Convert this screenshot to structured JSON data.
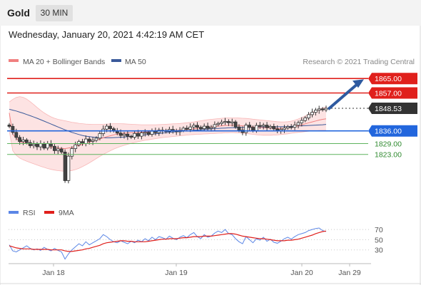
{
  "header": {
    "instrument": "Gold",
    "interval": "30 MIN",
    "timestamp": "Wednesday, January 20, 2021 4:42:19 AM CET"
  },
  "colors": {
    "up_candle": "#ffffff",
    "down_candle": "#444444",
    "bollinger_fill": "#fde3e3",
    "ma20": "#f08080",
    "ma50": "#3a5a9a",
    "resistance": "#e0201c",
    "support": "#2266dd",
    "target_line": "#5fb45f",
    "arrow": "#2e5aa0",
    "rsi": "#5b86e6",
    "rsi_ma": "#e0201c"
  },
  "chart_data": [
    {
      "type": "candlestick",
      "title": "Gold",
      "legend": [
        {
          "name": "MA 20 + Bollinger Bands",
          "color": "#f08080"
        },
        {
          "name": "MA 50",
          "color": "#3a5a9a"
        }
      ],
      "credit": "Research © 2021 Trading Central",
      "y_range": [
        1800,
        1871
      ],
      "x_ticks": [
        "Jan 18",
        "Jan 19",
        "Jan 20",
        "Jan 29"
      ],
      "series": [
        {
          "name": "price_close",
          "values": [
            1838.5,
            1835.2,
            1832.4,
            1830.1,
            1831.0,
            1829.5,
            1827.8,
            1828.6,
            1827.2,
            1829.0,
            1826.5,
            1828.9,
            1827.5,
            1825.1,
            1826.0,
            1824.3,
            1808.5,
            1822.0,
            1826.2,
            1828.3,
            1830.1,
            1829.0,
            1831.5,
            1830.2,
            1830.8,
            1832.0,
            1834.5,
            1837.0,
            1838.6,
            1837.2,
            1836.1,
            1834.8,
            1833.5,
            1834.2,
            1833.0,
            1832.5,
            1834.6,
            1833.1,
            1834.9,
            1835.2,
            1834.1,
            1835.8,
            1835.0,
            1836.4,
            1836.2,
            1835.6,
            1836.8,
            1836.0,
            1835.5,
            1836.3,
            1837.5,
            1836.9,
            1838.2,
            1839.1,
            1838.0,
            1837.2,
            1838.6,
            1837.4,
            1838.0,
            1839.5,
            1840.1,
            1840.8,
            1841.2,
            1840.5,
            1841.0,
            1838.2,
            1836.5,
            1835.1,
            1839.2,
            1838.0,
            1836.2,
            1839.0,
            1838.6,
            1839.2,
            1837.8,
            1838.5,
            1837.1,
            1836.2,
            1836.8,
            1837.6,
            1838.3,
            1838.0,
            1839.2,
            1840.5,
            1841.8,
            1843.2,
            1845.0,
            1846.3,
            1847.5,
            1848.2,
            1847.7,
            1848.53
          ]
        },
        {
          "name": "MA 20",
          "values": [
            1846.0,
            1834.0,
            1832.0,
            1830.0,
            1829.5,
            1829.0,
            1828.6,
            1828.2,
            1828.0,
            1827.8,
            1827.5,
            1827.2,
            1827.0,
            1826.8,
            1826.6,
            1826.4,
            1826.2,
            1826.5,
            1826.9,
            1827.4,
            1828.0,
            1828.6,
            1829.2,
            1829.8,
            1830.4,
            1831.0,
            1831.6,
            1832.2,
            1832.8,
            1833.3,
            1833.8,
            1834.2,
            1834.5,
            1834.7,
            1834.9,
            1835.0,
            1835.1,
            1835.2,
            1835.3,
            1835.4,
            1835.5,
            1835.6,
            1835.7,
            1835.8,
            1835.9,
            1836.0,
            1836.1,
            1836.2,
            1836.3,
            1836.4,
            1836.6,
            1836.8,
            1837.0,
            1837.2,
            1837.4,
            1837.6,
            1837.8,
            1838.0,
            1838.2,
            1838.4,
            1838.6,
            1838.8,
            1839.0,
            1839.1,
            1839.2,
            1839.1,
            1839.0,
            1838.8,
            1838.6,
            1838.4,
            1838.2,
            1838.0,
            1837.9,
            1837.8,
            1837.7,
            1837.6,
            1837.5,
            1837.4,
            1837.4,
            1837.5,
            1837.7,
            1838.0,
            1838.4,
            1838.8,
            1839.3,
            1839.9,
            1840.5,
            1841.0,
            1841.5,
            1842.0,
            1842.4,
            1842.7
          ]
        },
        {
          "name": "MA 50",
          "values": [
            1848.0,
            1847.5,
            1847.0,
            1846.4,
            1845.8,
            1845.1,
            1844.4,
            1843.7,
            1843.0,
            1842.2,
            1841.4,
            1840.6,
            1839.8,
            1839.0,
            1838.2,
            1837.4,
            1836.6,
            1835.9,
            1835.2,
            1834.6,
            1834.0,
            1833.5,
            1833.1,
            1832.8,
            1832.6,
            1832.4,
            1832.3,
            1832.2,
            1832.2,
            1832.2,
            1832.3,
            1832.4,
            1832.5,
            1832.6,
            1832.8,
            1833.0,
            1833.2,
            1833.4,
            1833.6,
            1833.8,
            1834.0,
            1834.2,
            1834.4,
            1834.6,
            1834.8,
            1835.0,
            1835.2,
            1835.4,
            1835.5,
            1835.7,
            1835.9,
            1836.0,
            1836.2,
            1836.4,
            1836.5,
            1836.7,
            1836.8,
            1837.0,
            1837.1,
            1837.3,
            1837.4,
            1837.5,
            1837.6,
            1837.7,
            1837.8,
            1837.8,
            1837.9,
            1837.9,
            1838.0,
            1838.0,
            1838.0,
            1838.1,
            1838.1,
            1838.1,
            1838.2,
            1838.2,
            1838.2,
            1838.3,
            1838.3,
            1838.4,
            1838.4,
            1838.5,
            1838.6,
            1838.7,
            1838.8,
            1838.9,
            1839.0,
            1839.1,
            1839.2,
            1839.3,
            1839.4,
            1839.6
          ]
        },
        {
          "name": "Bollinger upper",
          "values": [
            1852.0,
            1853.5,
            1854.5,
            1855.0,
            1854.6,
            1853.6,
            1852.2,
            1850.6,
            1849.0,
            1847.4,
            1846.0,
            1844.8,
            1843.8,
            1843.0,
            1842.4,
            1842.0,
            1841.6,
            1841.2,
            1840.8,
            1840.5,
            1840.2,
            1840.0,
            1839.8,
            1839.7,
            1839.6,
            1839.6,
            1839.6,
            1839.7,
            1839.8,
            1839.9,
            1840.0,
            1840.0,
            1840.0,
            1839.9,
            1839.8,
            1839.7,
            1839.6,
            1839.5,
            1839.4,
            1839.4,
            1839.4,
            1839.4,
            1839.4,
            1839.5,
            1839.6,
            1839.7,
            1839.8,
            1839.9,
            1840.0,
            1840.1,
            1840.3,
            1840.5,
            1840.7,
            1841.0,
            1841.3,
            1841.6,
            1841.9,
            1842.2,
            1842.4,
            1842.6,
            1842.8,
            1843.0,
            1843.1,
            1843.2,
            1843.2,
            1843.2,
            1843.1,
            1843.0,
            1842.9,
            1842.7,
            1842.5,
            1842.3,
            1842.1,
            1841.9,
            1841.7,
            1841.5,
            1841.3,
            1841.1,
            1841.0,
            1841.0,
            1841.1,
            1841.4,
            1841.9,
            1842.6,
            1843.4,
            1844.3,
            1845.3,
            1846.3,
            1847.2,
            1848.0,
            1848.7,
            1849.2
          ]
        },
        {
          "name": "Bollinger lower",
          "values": [
            1836.0,
            1825.0,
            1822.5,
            1821.0,
            1820.0,
            1819.2,
            1818.5,
            1817.8,
            1817.1,
            1816.4,
            1815.8,
            1815.2,
            1814.7,
            1814.3,
            1814.0,
            1813.8,
            1813.7,
            1813.8,
            1814.1,
            1814.6,
            1815.3,
            1816.2,
            1817.2,
            1818.3,
            1819.5,
            1820.7,
            1821.9,
            1823.0,
            1824.0,
            1825.0,
            1825.9,
            1826.7,
            1827.4,
            1828.0,
            1828.6,
            1829.1,
            1829.6,
            1830.0,
            1830.4,
            1830.8,
            1831.1,
            1831.4,
            1831.7,
            1832.0,
            1832.3,
            1832.5,
            1832.7,
            1832.9,
            1833.1,
            1833.3,
            1833.5,
            1833.7,
            1833.9,
            1834.0,
            1834.1,
            1834.2,
            1834.3,
            1834.4,
            1834.5,
            1834.6,
            1834.7,
            1834.8,
            1834.9,
            1835.0,
            1835.1,
            1835.0,
            1834.9,
            1834.7,
            1834.5,
            1834.3,
            1834.1,
            1833.9,
            1833.7,
            1833.6,
            1833.6,
            1833.6,
            1833.7,
            1833.8,
            1834.0,
            1834.2,
            1834.4,
            1834.7,
            1835.0,
            1835.2,
            1835.4,
            1835.6,
            1835.8,
            1836.0,
            1836.1,
            1836.2,
            1836.3,
            1836.3
          ]
        }
      ],
      "levels": [
        {
          "name": "resistance",
          "value": 1865.0,
          "label": "1865.00",
          "color": "#e0201c",
          "style": "solid"
        },
        {
          "name": "resistance",
          "value": 1857.0,
          "label": "1857.00",
          "color": "#e0201c",
          "style": "solid"
        },
        {
          "name": "last_price",
          "value": 1848.53,
          "label": "1848.53",
          "color": "#333333",
          "style": "dotted"
        },
        {
          "name": "pivot",
          "value": 1836.0,
          "label": "1836.00",
          "color": "#2266dd",
          "style": "solid"
        },
        {
          "name": "target",
          "value": 1829.0,
          "label": "1829.00",
          "color": "#5fb45f",
          "style": "solid"
        },
        {
          "name": "target",
          "value": 1823.0,
          "label": "1823.00",
          "color": "#5fb45f",
          "style": "solid"
        }
      ],
      "arrow": {
        "from": 1848.0,
        "to": 1865.0,
        "direction": "up"
      }
    },
    {
      "type": "line",
      "legend": [
        {
          "name": "RSI",
          "color": "#5b86e6"
        },
        {
          "name": "9MA",
          "color": "#e0201c"
        }
      ],
      "y_ticks": [
        "70",
        "50",
        "30"
      ],
      "y_range": [
        10,
        80
      ],
      "series": [
        {
          "name": "RSI",
          "values": [
            40,
            28,
            26,
            30,
            34,
            38,
            33,
            30,
            32,
            29,
            35,
            31,
            28,
            33,
            29,
            26,
            12,
            22,
            30,
            36,
            42,
            38,
            46,
            40,
            44,
            48,
            52,
            60,
            56,
            50,
            46,
            44,
            48,
            45,
            42,
            47,
            44,
            49,
            46,
            52,
            48,
            55,
            50,
            56,
            54,
            51,
            57,
            53,
            50,
            55,
            58,
            54,
            60,
            64,
            56,
            52,
            60,
            55,
            57,
            63,
            67,
            64,
            70,
            62,
            60,
            52,
            46,
            42,
            56,
            50,
            44,
            52,
            49,
            55,
            47,
            51,
            45,
            43,
            47,
            52,
            55,
            51,
            56,
            60,
            62,
            64,
            68,
            70,
            72,
            73,
            68,
            66
          ]
        },
        {
          "name": "9MA",
          "values": [
            38,
            36,
            34,
            33,
            32,
            32,
            32,
            31,
            31,
            31,
            31,
            31,
            30,
            30,
            30,
            30,
            28,
            27,
            27,
            28,
            29,
            30,
            32,
            33,
            35,
            37,
            39,
            42,
            44,
            45,
            46,
            47,
            48,
            48,
            47,
            47,
            46,
            46,
            46,
            46,
            47,
            48,
            49,
            50,
            51,
            51,
            52,
            52,
            52,
            53,
            54,
            54,
            55,
            56,
            56,
            56,
            57,
            57,
            57,
            58,
            59,
            60,
            61,
            62,
            62,
            61,
            59,
            57,
            56,
            55,
            54,
            53,
            52,
            52,
            51,
            50,
            49,
            48,
            48,
            48,
            49,
            49,
            50,
            51,
            53,
            55,
            57,
            59,
            62,
            64,
            66,
            67
          ]
        }
      ]
    }
  ]
}
